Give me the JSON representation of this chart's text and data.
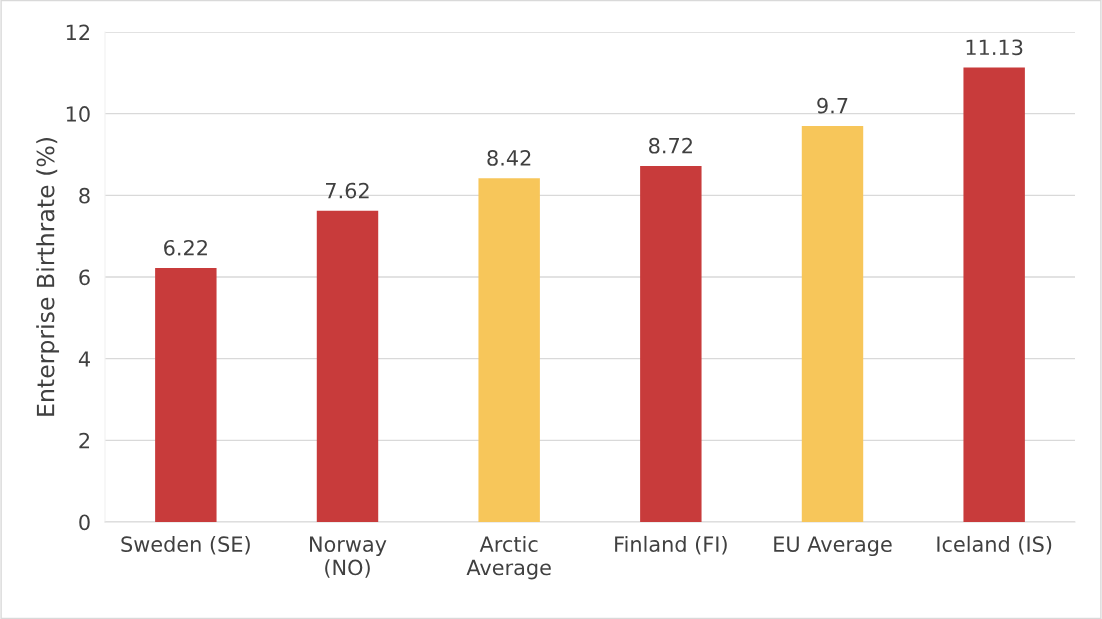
{
  "chart_data": {
    "type": "bar",
    "ylabel": "Enterprise Birthrate (%)",
    "categories": [
      "Sweden (SE)",
      "Norway\n(NO)",
      "Arctic\nAverage",
      "Finland (FI)",
      "EU Average",
      "Iceland (IS)"
    ],
    "values": [
      6.22,
      7.62,
      8.42,
      8.72,
      9.7,
      11.13
    ],
    "colors": [
      "#c83b3b",
      "#c83b3b",
      "#f7c65a",
      "#c83b3b",
      "#f7c65a",
      "#c83b3b"
    ],
    "ylim": [
      0,
      12
    ],
    "yticks": [
      0,
      2,
      4,
      6,
      8,
      10,
      12
    ],
    "grid": "y",
    "data_labels": true,
    "legend": false
  }
}
